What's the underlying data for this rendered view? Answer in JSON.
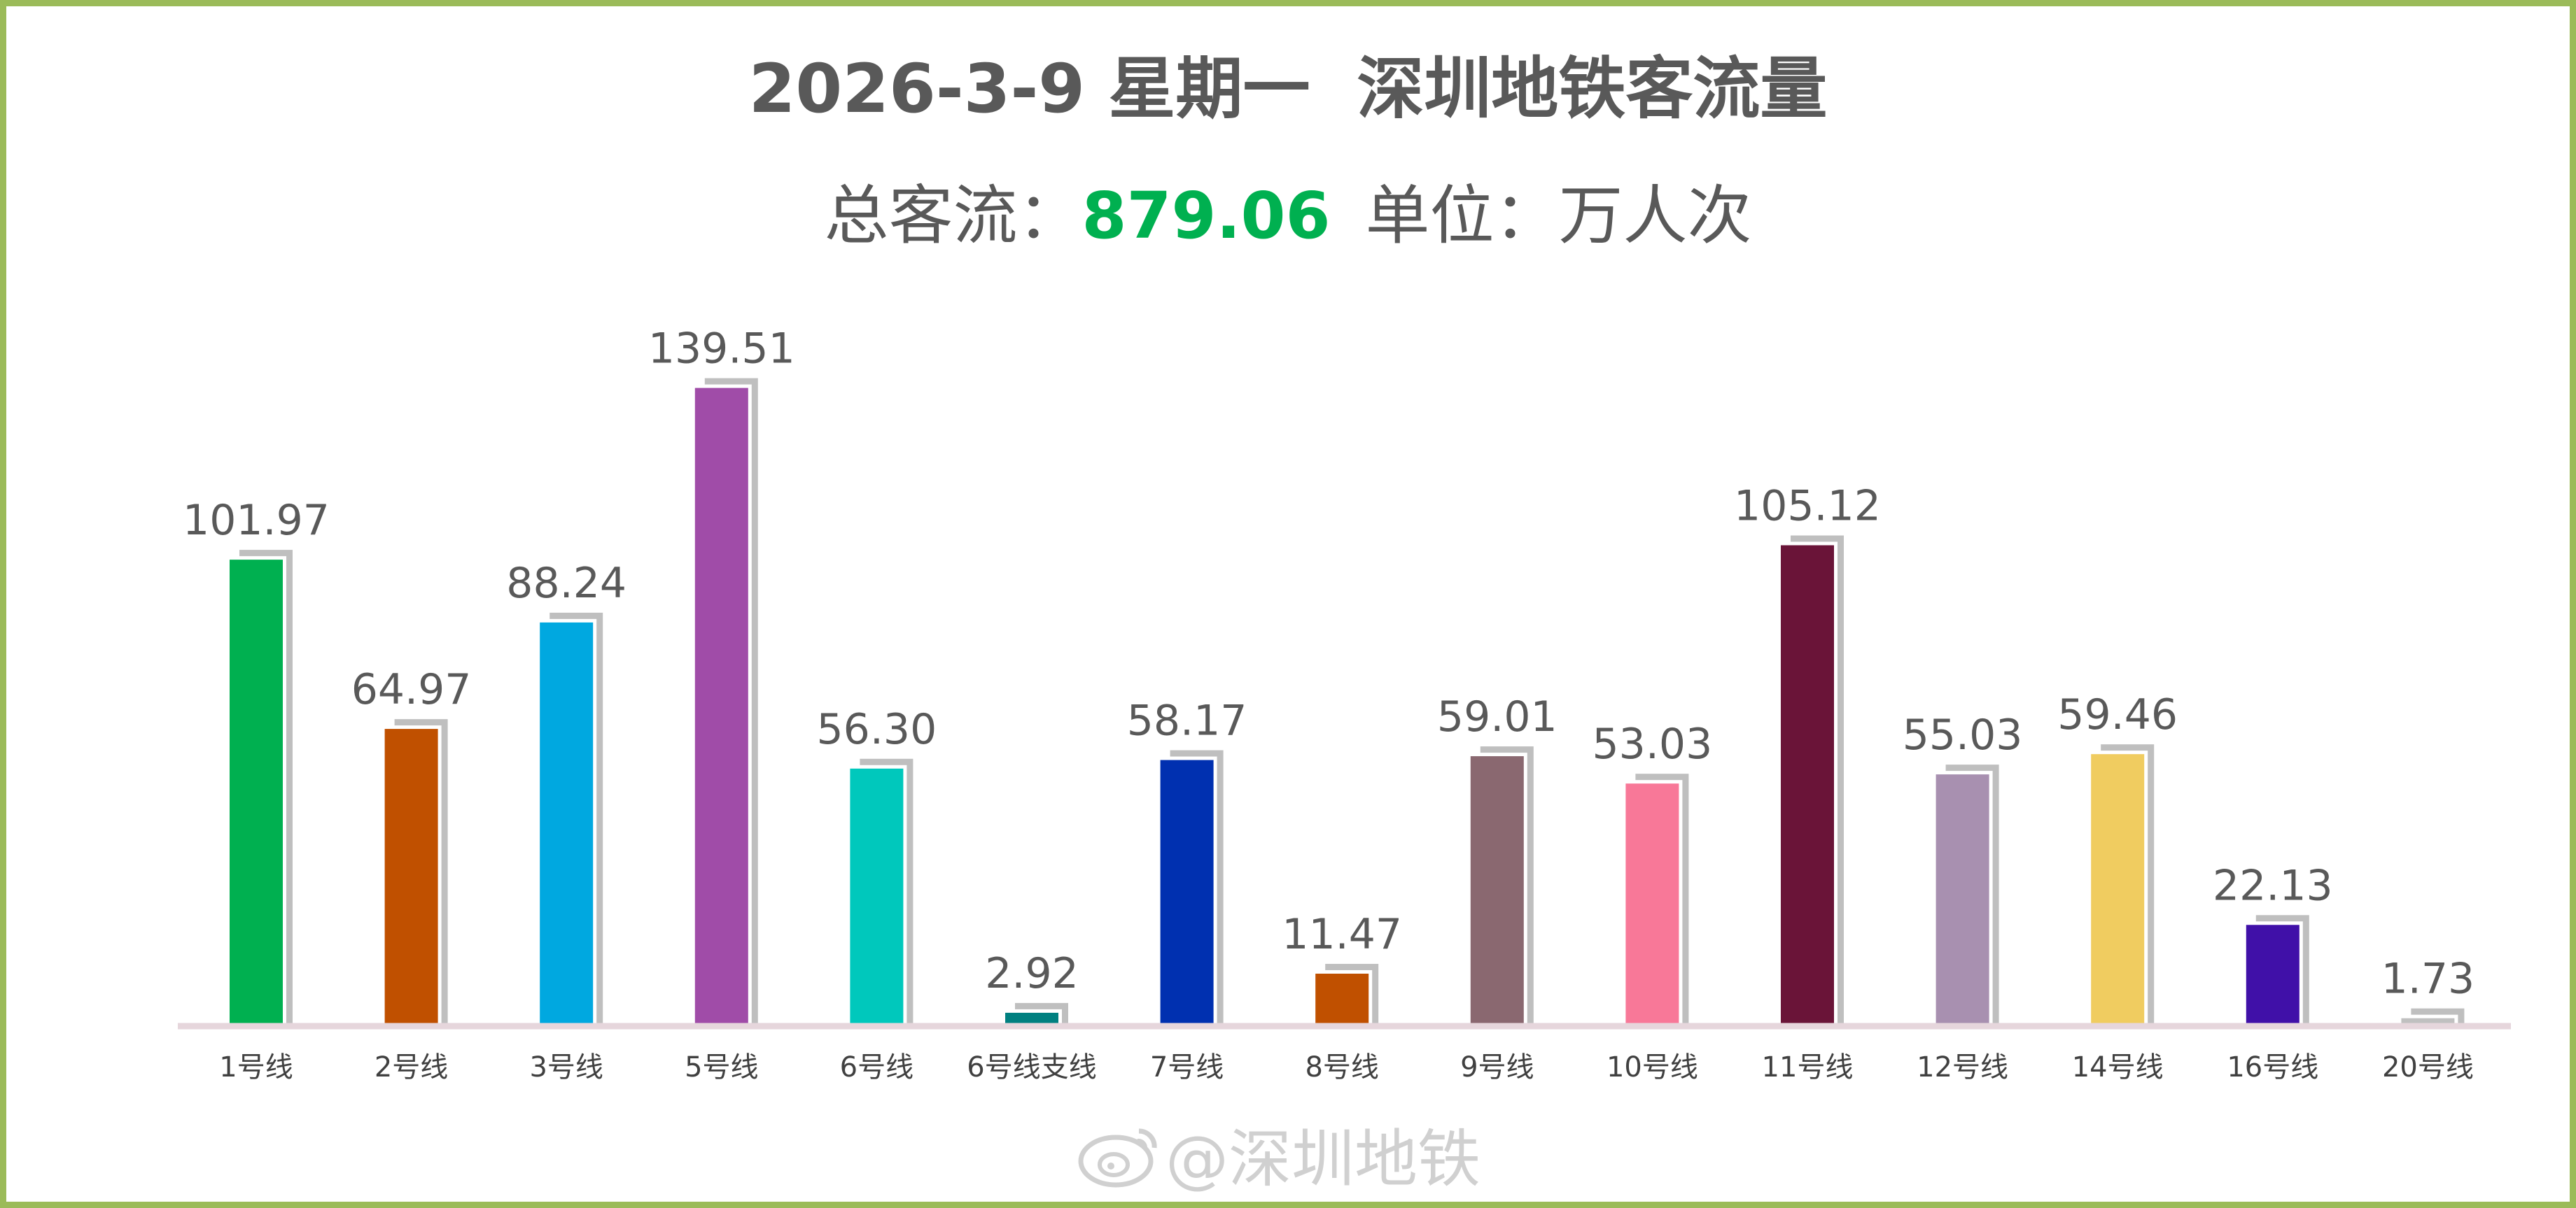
{
  "header": {
    "title": "2026-3-9 星期一  深圳地铁客流量",
    "total_label": "总客流：",
    "total_value": "879.06",
    "unit_label": "单位：万人次"
  },
  "watermark": {
    "text": "@深圳地铁",
    "icon": "weibo-icon"
  },
  "colors": {
    "frame_border": "#9bbb59",
    "total_value": "#00b050",
    "bar_shadow": "#bfbfbf",
    "axis": "#e6d6dc"
  },
  "chart_data": {
    "type": "bar",
    "categories": [
      "1号线",
      "2号线",
      "3号线",
      "5号线",
      "6号线",
      "6号线支线",
      "7号线",
      "8号线",
      "9号线",
      "10号线",
      "11号线",
      "12号线",
      "14号线",
      "16号线",
      "20号线"
    ],
    "values": [
      101.97,
      64.97,
      88.24,
      139.51,
      56.3,
      2.92,
      58.17,
      11.47,
      59.01,
      53.03,
      105.12,
      55.03,
      59.46,
      22.13,
      1.73
    ],
    "value_labels": [
      "101.97",
      "64.97",
      "88.24",
      "139.51",
      "56.30",
      "2.92",
      "58.17",
      "11.47",
      "59.01",
      "53.03",
      "105.12",
      "55.03",
      "59.46",
      "22.13",
      "1.73"
    ],
    "bar_colors": [
      "#00b050",
      "#c05000",
      "#00a8e0",
      "#a04ca8",
      "#00c8bc",
      "#008080",
      "#0030b0",
      "#c05000",
      "#8a6870",
      "#f87898",
      "#6a1438",
      "#a890b0",
      "#f0cc60",
      "#4010a8",
      "#c0c0c0"
    ],
    "title": "2026-3-9 星期一  深圳地铁客流量",
    "xlabel": "",
    "ylabel": "",
    "ylim": [
      0,
      150
    ],
    "grid": false,
    "legend": "none"
  }
}
